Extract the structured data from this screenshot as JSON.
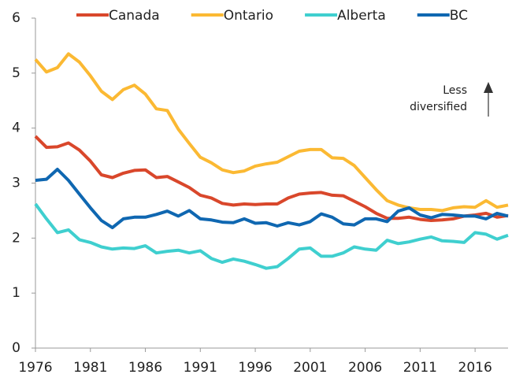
{
  "chart_data": {
    "type": "line",
    "x": [
      1976,
      1977,
      1978,
      1979,
      1980,
      1981,
      1982,
      1983,
      1984,
      1985,
      1986,
      1987,
      1988,
      1989,
      1990,
      1991,
      1992,
      1993,
      1994,
      1995,
      1996,
      1997,
      1998,
      1999,
      2000,
      2001,
      2002,
      2003,
      2004,
      2005,
      2006,
      2007,
      2008,
      2009,
      2010,
      2011,
      2012,
      2013,
      2014,
      2015,
      2016,
      2017,
      2018,
      2019
    ],
    "series": [
      {
        "name": "Canada",
        "color": "#d9472b",
        "values": [
          3.85,
          3.65,
          3.66,
          3.73,
          3.6,
          3.4,
          3.15,
          3.1,
          3.18,
          3.23,
          3.24,
          3.1,
          3.12,
          3.02,
          2.92,
          2.78,
          2.73,
          2.63,
          2.6,
          2.62,
          2.61,
          2.62,
          2.62,
          2.73,
          2.8,
          2.82,
          2.83,
          2.78,
          2.77,
          2.67,
          2.57,
          2.45,
          2.36,
          2.36,
          2.38,
          2.34,
          2.32,
          2.33,
          2.35,
          2.4,
          2.42,
          2.45,
          2.38,
          2.41
        ]
      },
      {
        "name": "Ontario",
        "color": "#fbb933",
        "values": [
          5.25,
          5.02,
          5.1,
          5.35,
          5.2,
          4.95,
          4.67,
          4.52,
          4.7,
          4.78,
          4.62,
          4.35,
          4.32,
          3.98,
          3.72,
          3.47,
          3.37,
          3.24,
          3.19,
          3.22,
          3.31,
          3.35,
          3.38,
          3.48,
          3.58,
          3.61,
          3.61,
          3.46,
          3.45,
          3.32,
          3.1,
          2.88,
          2.68,
          2.6,
          2.55,
          2.52,
          2.52,
          2.5,
          2.55,
          2.57,
          2.56,
          2.68,
          2.56,
          2.6
        ]
      },
      {
        "name": "Alberta",
        "color": "#3fcfcf",
        "values": [
          2.62,
          2.35,
          2.1,
          2.15,
          1.97,
          1.92,
          1.84,
          1.8,
          1.82,
          1.81,
          1.86,
          1.73,
          1.76,
          1.78,
          1.73,
          1.77,
          1.63,
          1.56,
          1.62,
          1.58,
          1.52,
          1.45,
          1.48,
          1.63,
          1.8,
          1.82,
          1.67,
          1.67,
          1.73,
          1.84,
          1.8,
          1.78,
          1.96,
          1.9,
          1.93,
          1.98,
          2.02,
          1.95,
          1.94,
          1.92,
          2.1,
          2.07,
          1.98,
          2.05
        ]
      },
      {
        "name": "BC",
        "color": "#0f67b1",
        "values": [
          3.05,
          3.07,
          3.25,
          3.05,
          2.8,
          2.55,
          2.32,
          2.19,
          2.35,
          2.38,
          2.38,
          2.43,
          2.49,
          2.4,
          2.5,
          2.35,
          2.33,
          2.29,
          2.28,
          2.35,
          2.27,
          2.28,
          2.22,
          2.28,
          2.24,
          2.3,
          2.44,
          2.38,
          2.26,
          2.24,
          2.35,
          2.35,
          2.3,
          2.49,
          2.55,
          2.42,
          2.37,
          2.43,
          2.42,
          2.4,
          2.4,
          2.35,
          2.45,
          2.4
        ]
      }
    ],
    "xlim": [
      1976,
      2019
    ],
    "xticks": [
      1976,
      1981,
      1986,
      1991,
      1996,
      2001,
      2006,
      2011,
      2016
    ],
    "ylim": [
      0,
      6
    ],
    "yticks": [
      0,
      1,
      2,
      3,
      4,
      5,
      6
    ],
    "legend": "top",
    "annotation": [
      "Less",
      "diversified"
    ]
  }
}
